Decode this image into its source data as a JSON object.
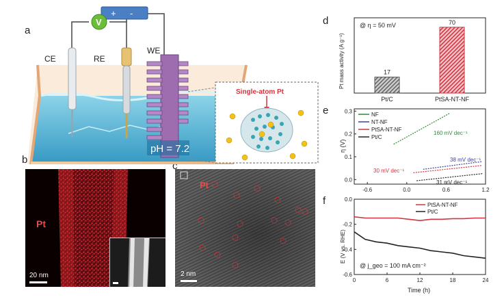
{
  "panel_labels": {
    "a": "a",
    "b": "b",
    "c": "c",
    "d": "d",
    "e": "e",
    "f": "f"
  },
  "panel_a": {
    "power_plus": "+",
    "power_minus": "-",
    "voltmeter": "V",
    "ce_label": "CE",
    "re_label": "RE",
    "we_label": "WE",
    "inset_title": "Single-atom Pt",
    "ph_label": "pH = 7.2"
  },
  "panel_b": {
    "element_label": "Pt",
    "scale_bar": "20 nm"
  },
  "panel_c": {
    "element_label": "Pt",
    "scale_bar": "2 nm"
  },
  "colors": {
    "nf": "#2e8b3a",
    "nt_nf": "#3f3f9f",
    "ptsa": "#d4343f",
    "ptc": "#222222",
    "pt_map": "#c8202a"
  },
  "chart_data": [
    {
      "panel": "d",
      "type": "bar",
      "title": "@ η = 50 mV",
      "ylabel": "Pt mass activity (A g⁻¹)",
      "categories": [
        "Pt/C",
        "PtSA-NT-NF"
      ],
      "values": [
        17,
        70
      ],
      "value_labels": [
        "17",
        "70"
      ],
      "ylim": [
        0,
        80
      ]
    },
    {
      "panel": "e",
      "type": "line",
      "ylabel": "η (V)",
      "xlabel": "",
      "xlim": [
        -0.8,
        1.2
      ],
      "ylim": [
        -0.02,
        0.31
      ],
      "xticks": [
        -0.6,
        0.0,
        0.6,
        1.2
      ],
      "xtick_labels": [
        "-0.6",
        "0.0",
        "0.6",
        "1.2"
      ],
      "yticks": [
        0.0,
        0.1,
        0.2,
        0.3
      ],
      "ytick_labels": [
        "0.0",
        "0.1",
        "0.2",
        "0.3"
      ],
      "legend": [
        "NF",
        "NT-NF",
        "PtSA-NT-NF",
        "Pt/C"
      ],
      "legend_position": "top-left",
      "series": [
        {
          "name": "NF",
          "x": [
            -0.2,
            0.65
          ],
          "y": [
            0.155,
            0.29
          ]
        },
        {
          "name": "NT-NF",
          "x": [
            0.25,
            1.15
          ],
          "y": [
            0.045,
            0.079
          ]
        },
        {
          "name": "PtSA-NT-NF",
          "x": [
            0.1,
            1.15
          ],
          "y": [
            0.03,
            0.062
          ]
        },
        {
          "name": "Pt/C",
          "x": [
            0.15,
            1.15
          ],
          "y": [
            -0.005,
            0.026
          ]
        }
      ],
      "annotations": [
        {
          "text": "160 mV dec⁻¹",
          "series": "NF"
        },
        {
          "text": "38 mV dec⁻¹",
          "series": "NT-NF"
        },
        {
          "text": "30 mV dec⁻¹",
          "series": "PtSA-NT-NF"
        },
        {
          "text": "31 mV dec⁻¹",
          "series": "Pt/C"
        }
      ]
    },
    {
      "panel": "f",
      "type": "line",
      "ylabel": "E (V vs. RHE)",
      "xlabel": "Time (h)",
      "xlim": [
        0,
        24
      ],
      "ylim": [
        -0.6,
        0.0
      ],
      "xticks": [
        0,
        6,
        12,
        18,
        24
      ],
      "xtick_labels": [
        "0",
        "6",
        "12",
        "18",
        "24"
      ],
      "yticks": [
        0.0,
        -0.2,
        -0.4,
        -0.6
      ],
      "ytick_labels": [
        "0.0",
        "-0.2",
        "-0.4",
        "-0.6"
      ],
      "legend": [
        "PtSA-NT-NF",
        "Pt/C"
      ],
      "legend_position": "top-right",
      "annotation": "@ j_geo = 100 mA cm⁻²",
      "series": [
        {
          "name": "PtSA-NT-NF",
          "x": [
            0,
            2,
            4,
            6,
            8,
            10,
            12,
            14,
            16,
            18,
            20,
            22,
            24
          ],
          "y": [
            -0.14,
            -0.15,
            -0.15,
            -0.15,
            -0.15,
            -0.16,
            -0.17,
            -0.16,
            -0.16,
            -0.155,
            -0.155,
            -0.15,
            -0.15
          ]
        },
        {
          "name": "Pt/C",
          "x": [
            0,
            2,
            4,
            6,
            8,
            10,
            12,
            14,
            16,
            18,
            20,
            22,
            24
          ],
          "y": [
            -0.26,
            -0.32,
            -0.34,
            -0.35,
            -0.37,
            -0.38,
            -0.39,
            -0.41,
            -0.42,
            -0.43,
            -0.45,
            -0.46,
            -0.47
          ]
        }
      ]
    }
  ]
}
